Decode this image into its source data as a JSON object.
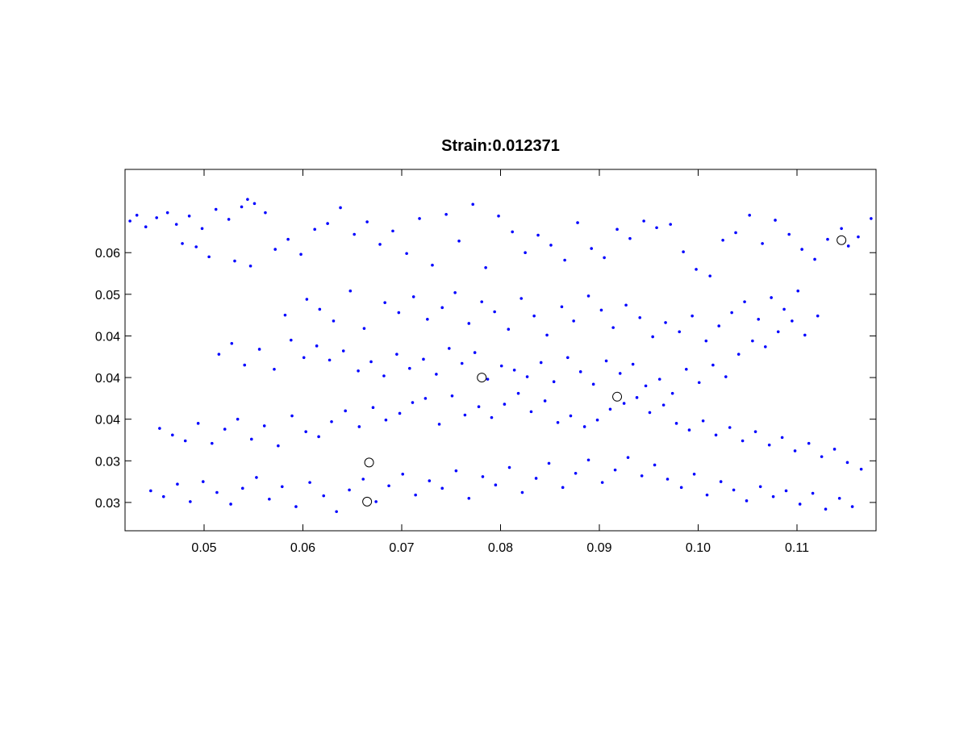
{
  "chart_data": {
    "type": "scatter",
    "title": "Strain:0.012371",
    "xlabel": "",
    "ylabel": "",
    "xlim": [
      0.042,
      0.118
    ],
    "ylim": [
      0.0233,
      0.0667
    ],
    "grid": false,
    "x_ticks": [
      0.05,
      0.06,
      0.07,
      0.08,
      0.09,
      0.1,
      0.11
    ],
    "x_tick_labels": [
      "0.05",
      "0.06",
      "0.07",
      "0.08",
      "0.09",
      "0.10",
      "0.11"
    ],
    "y_ticks": [
      0.0267,
      0.0317,
      0.0367,
      0.0417,
      0.0467,
      0.0517,
      0.0567
    ],
    "y_tick_labels": [
      "0.03",
      "0.03",
      "0.04",
      "0.04",
      "0.04",
      "0.05",
      "0.06"
    ],
    "colors": {
      "points": "#0000ff",
      "highlight": "#000000",
      "axes": "#000000"
    },
    "series": [
      {
        "marker": "dot",
        "x": [
          0.0425,
          0.0432,
          0.0441,
          0.0452,
          0.0463,
          0.0472,
          0.0485,
          0.0498,
          0.0512,
          0.0525,
          0.0538,
          0.0544,
          0.0551,
          0.0562,
          0.0478,
          0.0492,
          0.0505,
          0.0531,
          0.0547,
          0.0572,
          0.0585,
          0.0598,
          0.0612,
          0.0625,
          0.0638,
          0.0652,
          0.0665,
          0.0678,
          0.0691,
          0.0705,
          0.0718,
          0.0731,
          0.0745,
          0.0758,
          0.0772,
          0.0785,
          0.0798,
          0.0812,
          0.0825,
          0.0838,
          0.0851,
          0.0865,
          0.0878,
          0.0892,
          0.0905,
          0.0918,
          0.0931,
          0.0945,
          0.0958,
          0.0972,
          0.0985,
          0.0998,
          0.1012,
          0.1025,
          0.1038,
          0.1052,
          0.1065,
          0.1078,
          0.1092,
          0.1105,
          0.1118,
          0.1131,
          0.1145,
          0.1152,
          0.1162,
          0.1175,
          0.0582,
          0.0604,
          0.0617,
          0.0631,
          0.0648,
          0.0662,
          0.0683,
          0.0697,
          0.0712,
          0.0726,
          0.0741,
          0.0754,
          0.0768,
          0.0781,
          0.0794,
          0.0808,
          0.0821,
          0.0834,
          0.0847,
          0.0862,
          0.0874,
          0.0889,
          0.0902,
          0.0914,
          0.0927,
          0.0941,
          0.0954,
          0.0967,
          0.0981,
          0.0994,
          0.1008,
          0.1021,
          0.1034,
          0.1047,
          0.1061,
          0.1074,
          0.1087,
          0.1101,
          0.0515,
          0.0528,
          0.0541,
          0.0556,
          0.0571,
          0.0588,
          0.0601,
          0.0614,
          0.0627,
          0.0641,
          0.0656,
          0.0669,
          0.0682,
          0.0695,
          0.0708,
          0.0722,
          0.0735,
          0.0748,
          0.0761,
          0.0774,
          0.0787,
          0.0801,
          0.0814,
          0.0827,
          0.0841,
          0.0854,
          0.0868,
          0.0881,
          0.0894,
          0.0907,
          0.0921,
          0.0934,
          0.0947,
          0.0961,
          0.0974,
          0.0988,
          0.1001,
          0.1015,
          0.1028,
          0.1041,
          0.1055,
          0.1068,
          0.1081,
          0.1095,
          0.1108,
          0.1121,
          0.0455,
          0.0468,
          0.0481,
          0.0494,
          0.0508,
          0.0521,
          0.0534,
          0.0548,
          0.0561,
          0.0575,
          0.0589,
          0.0603,
          0.0616,
          0.0629,
          0.0643,
          0.0657,
          0.0671,
          0.0684,
          0.0698,
          0.0711,
          0.0724,
          0.0738,
          0.0751,
          0.0764,
          0.0778,
          0.0791,
          0.0804,
          0.0818,
          0.0831,
          0.0845,
          0.0858,
          0.0871,
          0.0885,
          0.0898,
          0.0911,
          0.0925,
          0.0938,
          0.0951,
          0.0965,
          0.0978,
          0.0991,
          0.1005,
          0.1018,
          0.1032,
          0.1045,
          0.1058,
          0.1072,
          0.1085,
          0.1098,
          0.1112,
          0.1125,
          0.1138,
          0.1151,
          0.1165,
          0.0446,
          0.0459,
          0.0473,
          0.0486,
          0.0499,
          0.0513,
          0.0527,
          0.0539,
          0.0553,
          0.0566,
          0.0579,
          0.0593,
          0.0607,
          0.0621,
          0.0634,
          0.0647,
          0.0661,
          0.0674,
          0.0687,
          0.0701,
          0.0714,
          0.0728,
          0.0741,
          0.0755,
          0.0768,
          0.0782,
          0.0795,
          0.0809,
          0.0822,
          0.0836,
          0.0849,
          0.0863,
          0.0876,
          0.0889,
          0.0903,
          0.0916,
          0.0929,
          0.0943,
          0.0956,
          0.0969,
          0.0983,
          0.0996,
          0.1009,
          0.1023,
          0.1036,
          0.1049,
          0.1063,
          0.1076,
          0.1089,
          0.1103,
          0.1116,
          0.1129,
          0.1143,
          0.1156
        ],
        "y": [
          0.0605,
          0.0612,
          0.0598,
          0.0609,
          0.0615,
          0.0601,
          0.0611,
          0.0596,
          0.0619,
          0.0607,
          0.0622,
          0.0631,
          0.0626,
          0.0615,
          0.0578,
          0.0574,
          0.0562,
          0.0557,
          0.0551,
          0.0571,
          0.0583,
          0.0565,
          0.0595,
          0.0602,
          0.0621,
          0.0589,
          0.0604,
          0.0577,
          0.0593,
          0.0566,
          0.0608,
          0.0552,
          0.0613,
          0.0581,
          0.0625,
          0.0549,
          0.0611,
          0.0592,
          0.0567,
          0.0588,
          0.0576,
          0.0558,
          0.0603,
          0.0572,
          0.0561,
          0.0595,
          0.0584,
          0.0605,
          0.0597,
          0.0601,
          0.0568,
          0.0547,
          0.0539,
          0.0582,
          0.0591,
          0.0612,
          0.0578,
          0.0606,
          0.0589,
          0.0571,
          0.0559,
          0.0583,
          0.0596,
          0.0575,
          0.0586,
          0.0608,
          0.0492,
          0.0511,
          0.0499,
          0.0485,
          0.0521,
          0.0476,
          0.0507,
          0.0495,
          0.0514,
          0.0487,
          0.0501,
          0.0519,
          0.0482,
          0.0508,
          0.0496,
          0.0475,
          0.0512,
          0.0491,
          0.0468,
          0.0502,
          0.0485,
          0.0515,
          0.0498,
          0.0477,
          0.0504,
          0.0489,
          0.0466,
          0.0483,
          0.0472,
          0.0491,
          0.0461,
          0.0479,
          0.0495,
          0.0508,
          0.0487,
          0.0513,
          0.0499,
          0.0521,
          0.0445,
          0.0458,
          0.0432,
          0.0451,
          0.0427,
          0.0462,
          0.0441,
          0.0455,
          0.0438,
          0.0449,
          0.0425,
          0.0436,
          0.0419,
          0.0445,
          0.0428,
          0.0439,
          0.0421,
          0.0452,
          0.0434,
          0.0447,
          0.0415,
          0.0431,
          0.0426,
          0.0418,
          0.0435,
          0.0412,
          0.0441,
          0.0424,
          0.0409,
          0.0437,
          0.0422,
          0.0433,
          0.0407,
          0.0415,
          0.0398,
          0.0427,
          0.0411,
          0.0432,
          0.0418,
          0.0445,
          0.0461,
          0.0454,
          0.0472,
          0.0485,
          0.0468,
          0.0491,
          0.0356,
          0.0348,
          0.0341,
          0.0362,
          0.0338,
          0.0355,
          0.0367,
          0.0343,
          0.0359,
          0.0335,
          0.0371,
          0.0352,
          0.0346,
          0.0364,
          0.0377,
          0.0358,
          0.0381,
          0.0366,
          0.0374,
          0.0387,
          0.0392,
          0.0361,
          0.0395,
          0.0372,
          0.0382,
          0.0369,
          0.0385,
          0.0398,
          0.0376,
          0.0389,
          0.0363,
          0.0371,
          0.0358,
          0.0366,
          0.0379,
          0.0386,
          0.0393,
          0.0375,
          0.0384,
          0.0362,
          0.0354,
          0.0365,
          0.0348,
          0.0357,
          0.0341,
          0.0352,
          0.0336,
          0.0345,
          0.0329,
          0.0338,
          0.0322,
          0.0331,
          0.0315,
          0.0307,
          0.0281,
          0.0274,
          0.0289,
          0.0268,
          0.0292,
          0.0279,
          0.0265,
          0.0284,
          0.0297,
          0.0271,
          0.0286,
          0.0262,
          0.0291,
          0.0275,
          0.0256,
          0.0282,
          0.0295,
          0.0268,
          0.0287,
          0.0301,
          0.0276,
          0.0293,
          0.0284,
          0.0305,
          0.0272,
          0.0298,
          0.0288,
          0.0309,
          0.0279,
          0.0296,
          0.0314,
          0.0285,
          0.0302,
          0.0318,
          0.0291,
          0.0306,
          0.0321,
          0.0299,
          0.0312,
          0.0295,
          0.0285,
          0.0301,
          0.0276,
          0.0292,
          0.0282,
          0.0269,
          0.0286,
          0.0274,
          0.0281,
          0.0265,
          0.0278,
          0.0259,
          0.0272,
          0.0262
        ]
      },
      {
        "marker": "circle",
        "x": [
          0.0667,
          0.0665,
          0.0781,
          0.0918,
          0.1145
        ],
        "y": [
          0.0315,
          0.0268,
          0.0417,
          0.0394,
          0.0582
        ]
      }
    ]
  }
}
